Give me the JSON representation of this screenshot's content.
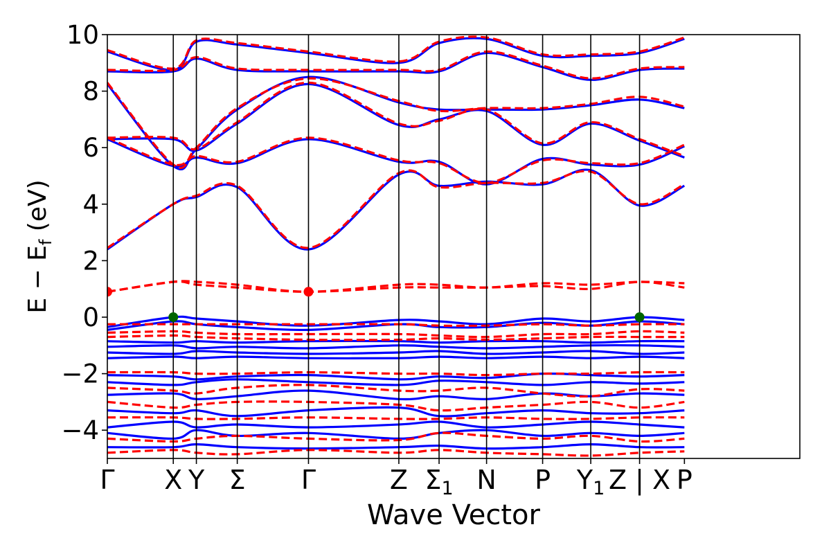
{
  "chart_data": {
    "type": "line",
    "title": "",
    "xlabel": "Wave Vector",
    "ylabel": "E − E_f (eV)",
    "ylabel_parts": {
      "main": "E − E",
      "sub": "f",
      "unit": " (eV)"
    },
    "ylim": [
      -5,
      10
    ],
    "yticks": [
      -4,
      -2,
      0,
      2,
      4,
      6,
      8,
      10
    ],
    "ytick_labels": [
      "−4",
      "−2",
      "0",
      "2",
      "4",
      "6",
      "8",
      "10"
    ],
    "xlim": [
      0,
      10.5
    ],
    "high_symmetry_points": [
      {
        "label": "Γ",
        "x": 0.0
      },
      {
        "label": "X",
        "x": 1.0
      },
      {
        "label": "Y",
        "x": 1.35
      },
      {
        "label": "Σ",
        "x": 1.97
      },
      {
        "label": "Γ",
        "x": 3.05
      },
      {
        "label": "Z",
        "x": 4.42
      },
      {
        "label": "Σ",
        "sub": "1",
        "x": 5.03
      },
      {
        "label": "N",
        "x": 5.75
      },
      {
        "label": "P",
        "x": 6.6
      },
      {
        "label": "Y",
        "sub": "1",
        "x": 7.33
      },
      {
        "label": "Z | X",
        "x": 8.07
      },
      {
        "label": "P",
        "x": 8.75
      }
    ],
    "series": [
      {
        "style": "dashed",
        "color": "#ff0000",
        "bands": [
          [
            0.9,
            1.25,
            1.25,
            1.15,
            0.9,
            1.15,
            1.15,
            1.05,
            1.2,
            1.15,
            1.25,
            1.2
          ],
          [
            0.9,
            1.25,
            1.15,
            1.05,
            0.9,
            1.05,
            1.05,
            1.05,
            1.1,
            1.0,
            1.25,
            1.05
          ],
          [
            -0.25,
            -0.25,
            -0.25,
            -0.25,
            -0.25,
            -0.25,
            -0.3,
            -0.3,
            -0.25,
            -0.3,
            -0.25,
            -0.25
          ],
          [
            -0.55,
            -0.5,
            -0.55,
            -0.6,
            -0.6,
            -0.6,
            -0.65,
            -0.7,
            -0.6,
            -0.6,
            -0.5,
            -0.55
          ],
          [
            -0.7,
            -0.65,
            -0.7,
            -0.75,
            -0.8,
            -0.8,
            -0.75,
            -0.8,
            -0.75,
            -0.7,
            -0.7,
            -0.7
          ],
          [
            -1.95,
            -1.95,
            -2.0,
            -2.0,
            -1.95,
            -2.0,
            -2.0,
            -2.05,
            -2.0,
            -2.0,
            -1.95,
            -1.95
          ],
          [
            -2.5,
            -2.6,
            -2.7,
            -2.5,
            -2.4,
            -2.6,
            -2.6,
            -2.5,
            -2.7,
            -2.8,
            -2.55,
            -2.6
          ],
          [
            -3.0,
            -3.2,
            -3.1,
            -3.0,
            -3.0,
            -3.1,
            -3.3,
            -3.2,
            -3.1,
            -3.0,
            -3.2,
            -3.0
          ],
          [
            -3.55,
            -3.55,
            -3.6,
            -3.6,
            -3.55,
            -3.6,
            -3.6,
            -3.55,
            -3.6,
            -3.6,
            -3.55,
            -3.55
          ],
          [
            -4.3,
            -4.4,
            -4.3,
            -4.2,
            -4.3,
            -4.35,
            -4.1,
            -4.2,
            -4.3,
            -4.2,
            -4.4,
            -4.3
          ],
          [
            -4.8,
            -4.7,
            -4.8,
            -4.85,
            -4.7,
            -4.8,
            -4.7,
            -4.8,
            -4.85,
            -4.9,
            -4.8,
            -4.75
          ],
          [
            2.45,
            4.0,
            4.3,
            4.65,
            2.45,
            5.1,
            4.6,
            4.75,
            4.75,
            5.15,
            4.0,
            4.7
          ],
          [
            6.35,
            5.4,
            5.7,
            5.5,
            6.35,
            5.55,
            5.45,
            4.75,
            5.55,
            5.45,
            5.45,
            6.1
          ],
          [
            6.35,
            6.35,
            5.95,
            6.9,
            8.3,
            6.85,
            6.95,
            7.35,
            6.15,
            6.9,
            6.3,
            5.7
          ],
          [
            8.3,
            5.4,
            6.0,
            7.4,
            8.45,
            7.65,
            7.3,
            7.4,
            7.4,
            7.55,
            7.8,
            7.45
          ],
          [
            8.75,
            8.75,
            9.2,
            8.8,
            8.75,
            8.75,
            8.75,
            9.4,
            8.9,
            8.45,
            8.8,
            8.85
          ],
          [
            9.45,
            8.8,
            9.8,
            9.7,
            9.4,
            9.05,
            9.75,
            9.9,
            9.3,
            9.3,
            9.4,
            9.9
          ]
        ]
      },
      {
        "style": "solid",
        "color": "#0000ff",
        "bands": [
          [
            -0.35,
            0.0,
            -0.05,
            -0.15,
            -0.3,
            -0.1,
            -0.15,
            -0.25,
            -0.05,
            -0.15,
            0.0,
            -0.1
          ],
          [
            -0.45,
            -0.15,
            -0.25,
            -0.35,
            -0.45,
            -0.25,
            -0.35,
            -0.35,
            -0.2,
            -0.3,
            -0.15,
            -0.25
          ],
          [
            -0.85,
            -0.9,
            -0.85,
            -0.9,
            -0.85,
            -0.85,
            -0.9,
            -0.85,
            -0.85,
            -0.9,
            -0.85,
            -0.85
          ],
          [
            -1.05,
            -1.0,
            -1.1,
            -1.05,
            -1.1,
            -1.0,
            -1.05,
            -1.1,
            -1.05,
            -1.0,
            -1.0,
            -1.05
          ],
          [
            -1.25,
            -1.3,
            -1.2,
            -1.25,
            -1.3,
            -1.25,
            -1.2,
            -1.3,
            -1.25,
            -1.2,
            -1.3,
            -1.25
          ],
          [
            -1.45,
            -1.4,
            -1.45,
            -1.4,
            -1.45,
            -1.45,
            -1.4,
            -1.45,
            -1.4,
            -1.45,
            -1.4,
            -1.45
          ],
          [
            -2.05,
            -2.1,
            -2.2,
            -2.1,
            -2.05,
            -2.2,
            -2.1,
            -2.15,
            -2.0,
            -2.05,
            -2.1,
            -2.05
          ],
          [
            -2.3,
            -2.4,
            -2.3,
            -2.2,
            -2.3,
            -2.4,
            -2.25,
            -2.3,
            -2.4,
            -2.3,
            -2.35,
            -2.3
          ],
          [
            -2.75,
            -2.7,
            -2.9,
            -2.8,
            -2.6,
            -2.9,
            -2.8,
            -2.9,
            -2.7,
            -2.8,
            -2.7,
            -2.75
          ],
          [
            -3.3,
            -3.4,
            -3.3,
            -3.5,
            -3.3,
            -3.2,
            -3.5,
            -3.4,
            -3.3,
            -3.4,
            -3.4,
            -3.3
          ],
          [
            -3.9,
            -3.7,
            -3.9,
            -3.8,
            -3.9,
            -3.8,
            -3.7,
            -3.9,
            -3.8,
            -3.7,
            -3.8,
            -3.9
          ],
          [
            -4.1,
            -4.3,
            -4.0,
            -4.2,
            -4.1,
            -4.3,
            -4.1,
            -4.0,
            -4.2,
            -4.1,
            -4.2,
            -4.1
          ],
          [
            -4.6,
            -4.6,
            -4.5,
            -4.6,
            -4.65,
            -4.6,
            -4.55,
            -4.65,
            -4.6,
            -4.5,
            -4.6,
            -4.6
          ],
          [
            2.4,
            4.0,
            4.25,
            4.6,
            2.4,
            5.05,
            4.65,
            4.8,
            4.7,
            5.2,
            3.95,
            4.65
          ],
          [
            6.3,
            5.35,
            5.65,
            5.45,
            6.3,
            5.5,
            5.5,
            4.7,
            5.6,
            5.4,
            5.4,
            6.05
          ],
          [
            6.3,
            6.3,
            5.9,
            6.85,
            8.25,
            6.8,
            7.0,
            7.3,
            6.1,
            6.85,
            6.25,
            5.65
          ],
          [
            8.25,
            5.35,
            5.95,
            7.35,
            8.5,
            7.6,
            7.35,
            7.35,
            7.35,
            7.5,
            7.7,
            7.4
          ],
          [
            8.7,
            8.7,
            9.15,
            8.75,
            8.7,
            8.7,
            8.7,
            9.35,
            8.85,
            8.4,
            8.75,
            8.8
          ],
          [
            9.4,
            8.75,
            9.75,
            9.65,
            9.35,
            9.0,
            9.7,
            9.85,
            9.25,
            9.25,
            9.35,
            9.85
          ]
        ]
      }
    ],
    "markers": [
      {
        "x": 0.0,
        "y": 0.9,
        "color": "#ff0000"
      },
      {
        "x": 3.05,
        "y": 0.9,
        "color": "#ff0000"
      },
      {
        "x": 1.0,
        "y": 0.0,
        "color": "#006400"
      },
      {
        "x": 8.07,
        "y": 0.0,
        "color": "#006400"
      }
    ]
  }
}
